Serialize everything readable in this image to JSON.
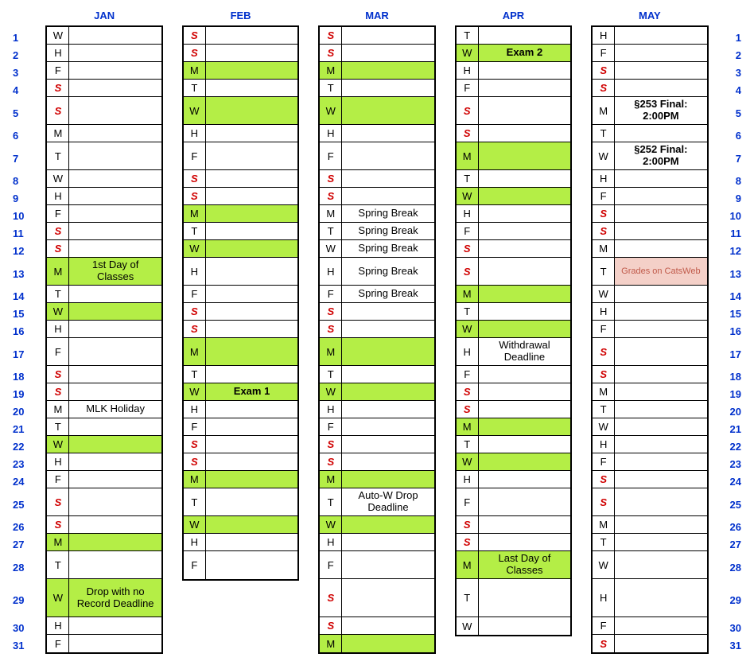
{
  "colors": {
    "blue": "#0030cc",
    "red": "#d00000",
    "green": "#b4ee46",
    "pink_bg": "#f4d0c8",
    "pink_text": "#c05a4a",
    "black": "#000000"
  },
  "months": [
    "JAN",
    "FEB",
    "MAR",
    "APR",
    "MAY"
  ],
  "max_rows_per_month": [
    31,
    28,
    31,
    30,
    31
  ],
  "rows": {
    "JAN": [
      {
        "n": 1,
        "d": "W"
      },
      {
        "n": 2,
        "d": "H"
      },
      {
        "n": 3,
        "d": "F"
      },
      {
        "n": 4,
        "d": "S",
        "we": true
      },
      {
        "n": 5,
        "d": "S",
        "we": true,
        "h": "tall"
      },
      {
        "n": 6,
        "d": "M"
      },
      {
        "n": 7,
        "d": "T",
        "h": "tall"
      },
      {
        "n": 8,
        "d": "W"
      },
      {
        "n": 9,
        "d": "H"
      },
      {
        "n": 10,
        "d": "F"
      },
      {
        "n": 11,
        "d": "S",
        "we": true
      },
      {
        "n": 12,
        "d": "S",
        "we": true
      },
      {
        "n": 13,
        "d": "M",
        "hl": "both",
        "evt": "1st Day of Classes",
        "h": "tall"
      },
      {
        "n": 14,
        "d": "T"
      },
      {
        "n": 15,
        "d": "W",
        "hl": "both"
      },
      {
        "n": 16,
        "d": "H"
      },
      {
        "n": 17,
        "d": "F",
        "h": "tall"
      },
      {
        "n": 18,
        "d": "S",
        "we": true
      },
      {
        "n": 19,
        "d": "S",
        "we": true
      },
      {
        "n": 20,
        "d": "M",
        "evt": "MLK Holiday"
      },
      {
        "n": 21,
        "d": "T"
      },
      {
        "n": 22,
        "d": "W",
        "hl": "both"
      },
      {
        "n": 23,
        "d": "H"
      },
      {
        "n": 24,
        "d": "F"
      },
      {
        "n": 25,
        "d": "S",
        "we": true,
        "h": "tall"
      },
      {
        "n": 26,
        "d": "S",
        "we": true
      },
      {
        "n": 27,
        "d": "M",
        "hl": "both"
      },
      {
        "n": 28,
        "d": "T",
        "h": "tall"
      },
      {
        "n": 29,
        "d": "W",
        "hl": "both",
        "evt": "Drop with no Record Deadline",
        "h": "tall3"
      },
      {
        "n": 30,
        "d": "H"
      },
      {
        "n": 31,
        "d": "F"
      }
    ],
    "FEB": [
      {
        "n": 1,
        "d": "S",
        "we": true
      },
      {
        "n": 2,
        "d": "S",
        "we": true
      },
      {
        "n": 3,
        "d": "M",
        "hl": "both"
      },
      {
        "n": 4,
        "d": "T"
      },
      {
        "n": 5,
        "d": "W",
        "hl": "both",
        "h": "tall"
      },
      {
        "n": 6,
        "d": "H"
      },
      {
        "n": 7,
        "d": "F",
        "h": "tall"
      },
      {
        "n": 8,
        "d": "S",
        "we": true
      },
      {
        "n": 9,
        "d": "S",
        "we": true
      },
      {
        "n": 10,
        "d": "M",
        "hl": "both"
      },
      {
        "n": 11,
        "d": "T"
      },
      {
        "n": 12,
        "d": "W",
        "hl": "both"
      },
      {
        "n": 13,
        "d": "H",
        "h": "tall"
      },
      {
        "n": 14,
        "d": "F"
      },
      {
        "n": 15,
        "d": "S",
        "we": true
      },
      {
        "n": 16,
        "d": "S",
        "we": true
      },
      {
        "n": 17,
        "d": "M",
        "hl": "both",
        "h": "tall"
      },
      {
        "n": 18,
        "d": "T"
      },
      {
        "n": 19,
        "d": "W",
        "hl": "both",
        "evt": "Exam 1",
        "evtBold": true
      },
      {
        "n": 20,
        "d": "H"
      },
      {
        "n": 21,
        "d": "F"
      },
      {
        "n": 22,
        "d": "S",
        "we": true
      },
      {
        "n": 23,
        "d": "S",
        "we": true
      },
      {
        "n": 24,
        "d": "M",
        "hl": "both"
      },
      {
        "n": 25,
        "d": "T",
        "h": "tall"
      },
      {
        "n": 26,
        "d": "W",
        "hl": "both"
      },
      {
        "n": 27,
        "d": "H"
      },
      {
        "n": 28,
        "d": "F",
        "h": "tall"
      }
    ],
    "MAR": [
      {
        "n": 1,
        "d": "S",
        "we": true
      },
      {
        "n": 2,
        "d": "S",
        "we": true
      },
      {
        "n": 3,
        "d": "M",
        "hl": "both"
      },
      {
        "n": 4,
        "d": "T"
      },
      {
        "n": 5,
        "d": "W",
        "hl": "both",
        "h": "tall"
      },
      {
        "n": 6,
        "d": "H"
      },
      {
        "n": 7,
        "d": "F",
        "h": "tall"
      },
      {
        "n": 8,
        "d": "S",
        "we": true
      },
      {
        "n": 9,
        "d": "S",
        "we": true
      },
      {
        "n": 10,
        "d": "M",
        "evt": "Spring Break"
      },
      {
        "n": 11,
        "d": "T",
        "evt": "Spring Break"
      },
      {
        "n": 12,
        "d": "W",
        "evt": "Spring Break"
      },
      {
        "n": 13,
        "d": "H",
        "evt": "Spring Break",
        "h": "tall"
      },
      {
        "n": 14,
        "d": "F",
        "evt": "Spring Break"
      },
      {
        "n": 15,
        "d": "S",
        "we": true
      },
      {
        "n": 16,
        "d": "S",
        "we": true
      },
      {
        "n": 17,
        "d": "M",
        "hl": "both",
        "h": "tall"
      },
      {
        "n": 18,
        "d": "T"
      },
      {
        "n": 19,
        "d": "W",
        "hl": "both"
      },
      {
        "n": 20,
        "d": "H"
      },
      {
        "n": 21,
        "d": "F"
      },
      {
        "n": 22,
        "d": "S",
        "we": true
      },
      {
        "n": 23,
        "d": "S",
        "we": true
      },
      {
        "n": 24,
        "d": "M",
        "hl": "both"
      },
      {
        "n": 25,
        "d": "T",
        "evt": "Auto-W Drop Deadline",
        "h": "tall"
      },
      {
        "n": 26,
        "d": "W",
        "hl": "both"
      },
      {
        "n": 27,
        "d": "H"
      },
      {
        "n": 28,
        "d": "F",
        "h": "tall"
      },
      {
        "n": 29,
        "d": "S",
        "we": true,
        "h": "tall3"
      },
      {
        "n": 30,
        "d": "S",
        "we": true
      },
      {
        "n": 31,
        "d": "M",
        "hl": "both"
      }
    ],
    "APR": [
      {
        "n": 1,
        "d": "T"
      },
      {
        "n": 2,
        "d": "W",
        "hl": "both",
        "evt": "Exam 2",
        "evtBold": true
      },
      {
        "n": 3,
        "d": "H"
      },
      {
        "n": 4,
        "d": "F"
      },
      {
        "n": 5,
        "d": "S",
        "we": true,
        "h": "tall"
      },
      {
        "n": 6,
        "d": "S",
        "we": true
      },
      {
        "n": 7,
        "d": "M",
        "hl": "both",
        "h": "tall"
      },
      {
        "n": 8,
        "d": "T"
      },
      {
        "n": 9,
        "d": "W",
        "hl": "both"
      },
      {
        "n": 10,
        "d": "H"
      },
      {
        "n": 11,
        "d": "F"
      },
      {
        "n": 12,
        "d": "S",
        "we": true
      },
      {
        "n": 13,
        "d": "S",
        "we": true,
        "h": "tall"
      },
      {
        "n": 14,
        "d": "M",
        "hl": "both"
      },
      {
        "n": 15,
        "d": "T"
      },
      {
        "n": 16,
        "d": "W",
        "hl": "both"
      },
      {
        "n": 17,
        "d": "H",
        "evt": "Withdrawal Deadline",
        "h": "tall"
      },
      {
        "n": 18,
        "d": "F"
      },
      {
        "n": 19,
        "d": "S",
        "we": true
      },
      {
        "n": 20,
        "d": "S",
        "we": true
      },
      {
        "n": 21,
        "d": "M",
        "hl": "both"
      },
      {
        "n": 22,
        "d": "T"
      },
      {
        "n": 23,
        "d": "W",
        "hl": "both"
      },
      {
        "n": 24,
        "d": "H"
      },
      {
        "n": 25,
        "d": "F",
        "h": "tall"
      },
      {
        "n": 26,
        "d": "S",
        "we": true
      },
      {
        "n": 27,
        "d": "S",
        "we": true
      },
      {
        "n": 28,
        "d": "M",
        "hl": "both",
        "evt": "Last Day of Classes",
        "h": "tall"
      },
      {
        "n": 29,
        "d": "T",
        "h": "tall3"
      },
      {
        "n": 30,
        "d": "W"
      }
    ],
    "MAY": [
      {
        "n": 1,
        "d": "H"
      },
      {
        "n": 2,
        "d": "F"
      },
      {
        "n": 3,
        "d": "S",
        "we": true
      },
      {
        "n": 4,
        "d": "S",
        "we": true
      },
      {
        "n": 5,
        "d": "M",
        "evt": "§253 Final: 2:00PM",
        "evtBold": true,
        "h": "tall"
      },
      {
        "n": 6,
        "d": "T"
      },
      {
        "n": 7,
        "d": "W",
        "evt": "§252 Final: 2:00PM",
        "evtBold": true,
        "h": "tall"
      },
      {
        "n": 8,
        "d": "H"
      },
      {
        "n": 9,
        "d": "F"
      },
      {
        "n": 10,
        "d": "S",
        "we": true
      },
      {
        "n": 11,
        "d": "S",
        "we": true
      },
      {
        "n": 12,
        "d": "M"
      },
      {
        "n": 13,
        "d": "T",
        "evt": "Grades on CatsWeb",
        "evtStyle": "pink",
        "h": "tall"
      },
      {
        "n": 14,
        "d": "W"
      },
      {
        "n": 15,
        "d": "H"
      },
      {
        "n": 16,
        "d": "F"
      },
      {
        "n": 17,
        "d": "S",
        "we": true,
        "h": "tall"
      },
      {
        "n": 18,
        "d": "S",
        "we": true
      },
      {
        "n": 19,
        "d": "M"
      },
      {
        "n": 20,
        "d": "T"
      },
      {
        "n": 21,
        "d": "W"
      },
      {
        "n": 22,
        "d": "H"
      },
      {
        "n": 23,
        "d": "F"
      },
      {
        "n": 24,
        "d": "S",
        "we": true
      },
      {
        "n": 25,
        "d": "S",
        "we": true,
        "h": "tall"
      },
      {
        "n": 26,
        "d": "M"
      },
      {
        "n": 27,
        "d": "T"
      },
      {
        "n": 28,
        "d": "W",
        "h": "tall"
      },
      {
        "n": 29,
        "d": "H",
        "h": "tall3"
      },
      {
        "n": 30,
        "d": "F"
      },
      {
        "n": 31,
        "d": "S",
        "we": true
      }
    ]
  }
}
